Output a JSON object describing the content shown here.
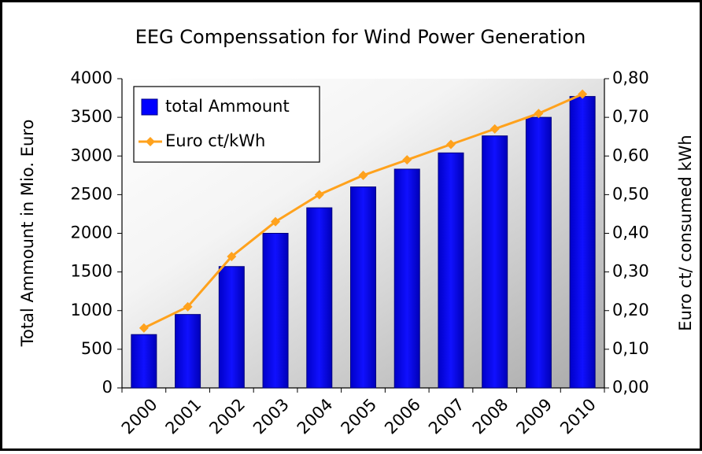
{
  "chart_data": {
    "type": "bar",
    "title": "EEG Compenssation for Wind Power Generation",
    "y_label": "Total Ammount in Mio. Euro",
    "y2_label": "Euro ct/ consumed kWh",
    "categories": [
      "2000",
      "2001",
      "2002",
      "2003",
      "2004",
      "2005",
      "2006",
      "2007",
      "2008",
      "2009",
      "2010"
    ],
    "series": [
      {
        "name": "total Ammount",
        "type": "bar",
        "axis": "y",
        "color": "#0000ff",
        "values": [
          690,
          950,
          1570,
          2000,
          2330,
          2600,
          2830,
          3040,
          3260,
          3500,
          3770
        ]
      },
      {
        "name": "Euro ct/kWh",
        "type": "line",
        "axis": "y2",
        "color": "#ffa21d",
        "values": [
          0.155,
          0.21,
          0.34,
          0.43,
          0.5,
          0.55,
          0.59,
          0.63,
          0.67,
          0.71,
          0.76
        ]
      }
    ],
    "ylim": [
      0,
      4000
    ],
    "yticks": [
      0,
      500,
      1000,
      1500,
      2000,
      2500,
      3000,
      3500,
      4000
    ],
    "y2lim": [
      0,
      0.8
    ],
    "y2ticks": [
      {
        "value": 0,
        "label": "0,00"
      },
      {
        "value": 0.1,
        "label": "0,10"
      },
      {
        "value": 0.2,
        "label": "0,20"
      },
      {
        "value": 0.3,
        "label": "0,30"
      },
      {
        "value": 0.4,
        "label": "0,40"
      },
      {
        "value": 0.5,
        "label": "0,50"
      },
      {
        "value": 0.6,
        "label": "0,60"
      },
      {
        "value": 0.7,
        "label": "0,70"
      },
      {
        "value": 0.8,
        "label": "0,80"
      }
    ],
    "legend": "top-left"
  }
}
